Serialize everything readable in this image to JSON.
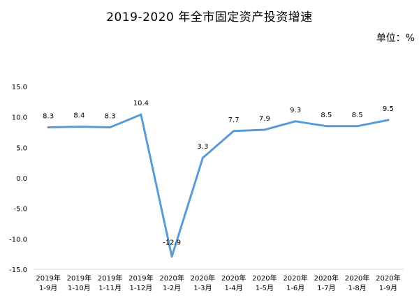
{
  "title": "2019-2020 年全市固定资产投资增速",
  "unit_label": "单位：%",
  "chart_data": {
    "type": "line",
    "title": "2019-2020 年全市固定资产投资增速",
    "ylabel": "",
    "xlabel": "",
    "ylim": [
      -15,
      15
    ],
    "yticks": [
      "15.0",
      "10.0",
      "5.0",
      "0.0",
      "-5.0",
      "-10.0",
      "-15.0"
    ],
    "categories": [
      [
        "2019年",
        "1-9月"
      ],
      [
        "2019年",
        "1-10月"
      ],
      [
        "2019年",
        "1-11月"
      ],
      [
        "2019年",
        "1-12月"
      ],
      [
        "2020年",
        "1-2月"
      ],
      [
        "2020年",
        "1-3月"
      ],
      [
        "2020年",
        "1-4月"
      ],
      [
        "2020年",
        "1-5月"
      ],
      [
        "2020年",
        "1-6月"
      ],
      [
        "2020年",
        "1-7月"
      ],
      [
        "2020年",
        "1-8月"
      ],
      [
        "2020年",
        "1-9月"
      ]
    ],
    "series": [
      {
        "values": [
          8.3,
          8.4,
          8.3,
          10.4,
          -12.9,
          3.3,
          7.7,
          7.9,
          9.3,
          8.5,
          8.5,
          9.5
        ],
        "labels": [
          "8.3",
          "8.4",
          "8.3",
          "10.4",
          "-12.9",
          "3.3",
          "7.7",
          "7.9",
          "9.3",
          "8.5",
          "8.5",
          "9.5"
        ],
        "color": "#5B9BD5"
      }
    ],
    "grid": false,
    "legend": "none"
  }
}
